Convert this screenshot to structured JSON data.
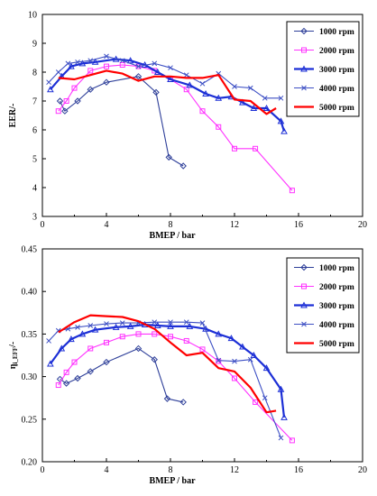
{
  "chart_data": [
    {
      "type": "line",
      "xlabel": "BMEP / bar",
      "ylabel": "EER/-",
      "xlim": [
        0,
        20
      ],
      "ylim": [
        3,
        10
      ],
      "xticks": [
        "0",
        "4",
        "8",
        "12",
        "16",
        "20"
      ],
      "yticks": [
        "3",
        "4",
        "5",
        "6",
        "7",
        "8",
        "9",
        "10"
      ],
      "grid": false,
      "legend_position": "top-right",
      "series": [
        {
          "name": "1000 rpm",
          "color": "#2e3f99",
          "marker": "diamond",
          "x": [
            1.1,
            1.4,
            2.2,
            3,
            4,
            6,
            7.1,
            7.9,
            8.8
          ],
          "y": [
            7.0,
            6.65,
            7.0,
            7.4,
            7.65,
            7.85,
            7.3,
            5.05,
            4.75
          ]
        },
        {
          "name": "2000 rpm",
          "color": "#ff33ff",
          "marker": "square",
          "x": [
            1,
            1.5,
            2,
            3,
            4,
            5,
            6,
            7,
            8,
            9,
            10,
            11,
            12,
            13.3,
            15.6
          ],
          "y": [
            6.65,
            7.0,
            7.45,
            8.05,
            8.2,
            8.25,
            8.2,
            8.05,
            7.75,
            7.4,
            6.65,
            6.1,
            5.35,
            5.35,
            3.9
          ]
        },
        {
          "name": "3000 rpm",
          "color": "#1c2fd6",
          "marker": "triangle",
          "x": [
            0.5,
            1.2,
            1.8,
            2.5,
            3.3,
            4.6,
            5.5,
            6.4,
            7.2,
            8,
            9.2,
            10.2,
            11,
            11.8,
            12.5,
            13.2,
            14,
            14.9,
            15.1
          ],
          "y": [
            7.4,
            7.85,
            8.2,
            8.3,
            8.35,
            8.45,
            8.4,
            8.25,
            8.0,
            7.75,
            7.55,
            7.25,
            7.1,
            7.15,
            6.95,
            6.75,
            6.75,
            6.3,
            5.95
          ]
        },
        {
          "name": "4000 rpm",
          "color": "#3d4fc4",
          "marker": "x",
          "x": [
            0.4,
            1,
            1.6,
            2.2,
            3,
            4,
            5,
            6,
            7,
            8,
            9,
            10,
            11,
            12,
            13,
            13.9,
            14.9
          ],
          "y": [
            7.65,
            8.0,
            8.3,
            8.35,
            8.4,
            8.55,
            8.4,
            8.2,
            8.3,
            8.15,
            7.9,
            7.6,
            7.95,
            7.5,
            7.45,
            7.1,
            7.1
          ]
        },
        {
          "name": "5000 rpm",
          "color": "#ff0000",
          "marker": "none",
          "x": [
            1,
            2,
            3,
            4,
            5,
            6,
            7,
            8,
            9,
            10,
            11,
            12,
            13,
            14,
            14.6
          ],
          "y": [
            7.8,
            7.75,
            7.9,
            8.05,
            7.95,
            7.7,
            7.85,
            7.85,
            7.8,
            7.8,
            7.9,
            7.05,
            7.0,
            6.55,
            6.75
          ]
        }
      ]
    },
    {
      "type": "line",
      "xlabel": "BMEP / bar",
      "ylabel": "η",
      "ylabel_subscript": "i_EFF",
      "ylabel_suffix": "/-",
      "xlim": [
        0,
        20
      ],
      "ylim": [
        0.2,
        0.45
      ],
      "xticks": [
        "0",
        "4",
        "8",
        "12",
        "16",
        "20"
      ],
      "yticks": [
        "0.20",
        "0.25",
        "0.30",
        "0.35",
        "0.40",
        "0.45"
      ],
      "grid": false,
      "legend_position": "top-right",
      "series": [
        {
          "name": "1000 rpm",
          "color": "#2e3f99",
          "marker": "diamond",
          "x": [
            1.1,
            1.5,
            2.2,
            3,
            4,
            6,
            7,
            7.8,
            8.8
          ],
          "y": [
            0.297,
            0.292,
            0.298,
            0.306,
            0.317,
            0.333,
            0.32,
            0.274,
            0.27
          ]
        },
        {
          "name": "2000 rpm",
          "color": "#ff33ff",
          "marker": "square",
          "x": [
            1,
            1.5,
            2,
            3,
            4,
            5,
            6,
            7,
            8,
            9,
            10,
            11,
            12,
            13.3,
            15.6
          ],
          "y": [
            0.29,
            0.305,
            0.317,
            0.333,
            0.34,
            0.347,
            0.35,
            0.35,
            0.347,
            0.342,
            0.332,
            0.318,
            0.298,
            0.27,
            0.225
          ]
        },
        {
          "name": "3000 rpm",
          "color": "#1c2fd6",
          "marker": "triangle",
          "x": [
            0.5,
            1.2,
            1.8,
            2.5,
            3.3,
            4.6,
            5.5,
            6.4,
            7.2,
            8,
            9.2,
            10.2,
            11,
            11.8,
            12.5,
            13.2,
            14,
            14.9,
            15.1
          ],
          "y": [
            0.315,
            0.333,
            0.344,
            0.35,
            0.355,
            0.358,
            0.359,
            0.361,
            0.36,
            0.359,
            0.359,
            0.356,
            0.35,
            0.345,
            0.335,
            0.325,
            0.31,
            0.285,
            0.252
          ]
        },
        {
          "name": "4000 rpm",
          "color": "#3d4fc4",
          "marker": "x",
          "x": [
            0.4,
            1,
            1.6,
            2.2,
            3,
            4,
            5,
            6,
            7,
            8,
            9,
            10,
            11,
            12,
            13,
            13.9,
            14.9
          ],
          "y": [
            0.342,
            0.354,
            0.356,
            0.358,
            0.36,
            0.362,
            0.363,
            0.363,
            0.364,
            0.364,
            0.364,
            0.363,
            0.319,
            0.318,
            0.32,
            0.275,
            0.228
          ]
        },
        {
          "name": "5000 rpm",
          "color": "#ff0000",
          "marker": "none",
          "x": [
            1,
            2,
            3,
            4,
            5,
            6,
            7,
            8,
            9,
            10,
            11,
            12,
            13,
            14,
            14.6
          ],
          "y": [
            0.352,
            0.364,
            0.372,
            0.371,
            0.37,
            0.365,
            0.356,
            0.34,
            0.325,
            0.328,
            0.31,
            0.306,
            0.287,
            0.258,
            0.26
          ]
        }
      ]
    }
  ]
}
